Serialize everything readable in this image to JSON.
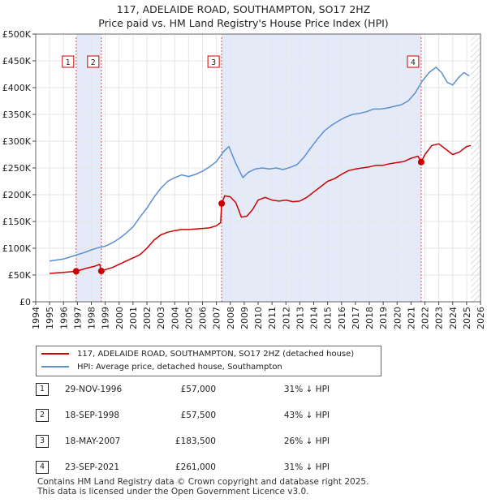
{
  "chart_data": {
    "type": "line",
    "title": "117, ADELAIDE ROAD, SOUTHAMPTON, SO17 2HZ",
    "subtitle": "Price paid vs. HM Land Registry's House Price Index (HPI)",
    "xlabel": "",
    "ylabel": "",
    "xlim": [
      1994,
      2026
    ],
    "ylim": [
      0,
      500000
    ],
    "x_ticks": [
      "1994",
      "1995",
      "1996",
      "1997",
      "1998",
      "1999",
      "2000",
      "2001",
      "2002",
      "2003",
      "2004",
      "2005",
      "2006",
      "2007",
      "2008",
      "2009",
      "2010",
      "2011",
      "2012",
      "2013",
      "2014",
      "2015",
      "2016",
      "2017",
      "2018",
      "2019",
      "2020",
      "2021",
      "2022",
      "2023",
      "2024",
      "2025",
      "2026"
    ],
    "y_ticks": [
      {
        "value": 0,
        "label": "£0"
      },
      {
        "value": 50000,
        "label": "£50K"
      },
      {
        "value": 100000,
        "label": "£100K"
      },
      {
        "value": 150000,
        "label": "£150K"
      },
      {
        "value": 200000,
        "label": "£200K"
      },
      {
        "value": 250000,
        "label": "£250K"
      },
      {
        "value": 300000,
        "label": "£300K"
      },
      {
        "value": 350000,
        "label": "£350K"
      },
      {
        "value": 400000,
        "label": "£400K"
      },
      {
        "value": 450000,
        "label": "£450K"
      },
      {
        "value": 500000,
        "label": "£500K"
      }
    ],
    "series": [
      {
        "name": "117, ADELAIDE ROAD, SOUTHAMPTON, SO17 2HZ (detached house)",
        "color": "#cc0000",
        "x": [
          1995.0,
          1995.5,
          1996.0,
          1996.5,
          1996.91,
          1997.3,
          1997.7,
          1998.2,
          1998.6,
          1998.72,
          1999.0,
          1999.5,
          2000.0,
          2000.5,
          2001.0,
          2001.5,
          2002.0,
          2002.5,
          2003.0,
          2003.5,
          2004.0,
          2004.5,
          2005.0,
          2005.5,
          2006.0,
          2006.5,
          2007.0,
          2007.3,
          2007.38,
          2007.6,
          2008.0,
          2008.4,
          2008.8,
          2009.2,
          2009.6,
          2010.0,
          2010.5,
          2011.0,
          2011.5,
          2012.0,
          2012.5,
          2013.0,
          2013.5,
          2014.0,
          2014.5,
          2015.0,
          2015.5,
          2016.0,
          2016.5,
          2017.0,
          2017.5,
          2018.0,
          2018.5,
          2019.0,
          2019.5,
          2020.0,
          2020.5,
          2021.0,
          2021.5,
          2021.73,
          2022.0,
          2022.5,
          2023.0,
          2023.5,
          2024.0,
          2024.5,
          2025.0,
          2025.3
        ],
        "values": [
          53000,
          54000,
          55000,
          56000,
          57000,
          60000,
          63000,
          66000,
          70000,
          57500,
          60000,
          64000,
          70000,
          76000,
          82000,
          88000,
          100000,
          115000,
          125000,
          130000,
          133000,
          135000,
          135000,
          136000,
          137000,
          138000,
          142000,
          148000,
          183500,
          198000,
          196000,
          185000,
          158000,
          160000,
          172000,
          190000,
          195000,
          190000,
          188000,
          190000,
          187000,
          188000,
          195000,
          205000,
          215000,
          225000,
          230000,
          238000,
          245000,
          248000,
          250000,
          252000,
          255000,
          255000,
          258000,
          260000,
          262000,
          268000,
          272000,
          261000,
          275000,
          292000,
          295000,
          285000,
          275000,
          280000,
          290000,
          292000
        ]
      },
      {
        "name": "HPI: Average price, detached house, Southampton",
        "color": "#5b8fd0",
        "x": [
          1995.0,
          1995.5,
          1996.0,
          1996.5,
          1997.0,
          1997.5,
          1998.0,
          1998.5,
          1999.0,
          1999.5,
          2000.0,
          2000.5,
          2001.0,
          2001.5,
          2002.0,
          2002.5,
          2003.0,
          2003.5,
          2004.0,
          2004.5,
          2005.0,
          2005.5,
          2006.0,
          2006.5,
          2007.0,
          2007.5,
          2007.9,
          2008.4,
          2008.9,
          2009.3,
          2009.8,
          2010.3,
          2010.8,
          2011.3,
          2011.8,
          2012.3,
          2012.8,
          2013.3,
          2013.8,
          2014.3,
          2014.8,
          2015.3,
          2015.8,
          2016.3,
          2016.8,
          2017.3,
          2017.8,
          2018.3,
          2018.8,
          2019.3,
          2019.8,
          2020.3,
          2020.8,
          2021.3,
          2021.8,
          2022.3,
          2022.8,
          2023.2,
          2023.6,
          2024.0,
          2024.4,
          2024.8,
          2025.2
        ],
        "values": [
          76000,
          78000,
          80000,
          84000,
          88000,
          92000,
          97000,
          101000,
          104000,
          110000,
          118000,
          128000,
          140000,
          158000,
          175000,
          195000,
          212000,
          225000,
          232000,
          237000,
          234000,
          238000,
          244000,
          252000,
          262000,
          280000,
          290000,
          258000,
          232000,
          242000,
          248000,
          250000,
          248000,
          250000,
          247000,
          251000,
          256000,
          270000,
          288000,
          305000,
          320000,
          330000,
          338000,
          345000,
          350000,
          352000,
          355000,
          360000,
          360000,
          362000,
          365000,
          368000,
          375000,
          390000,
          412000,
          428000,
          438000,
          428000,
          410000,
          405000,
          418000,
          428000,
          422000
        ]
      }
    ],
    "sale_markers": [
      {
        "label": "1",
        "x": 1996.91,
        "value": 57000
      },
      {
        "label": "2",
        "x": 1998.72,
        "value": 57500
      },
      {
        "label": "3",
        "x": 2007.38,
        "value": 183500
      },
      {
        "label": "4",
        "x": 2021.73,
        "value": 261000
      }
    ],
    "future_hatch_from": 2025.3,
    "legend_position": "below"
  },
  "sales": [
    {
      "num": "1",
      "date": "29-NOV-1996",
      "price": "£57,000",
      "hpi": "31% ↓ HPI"
    },
    {
      "num": "2",
      "date": "18-SEP-1998",
      "price": "£57,500",
      "hpi": "43% ↓ HPI"
    },
    {
      "num": "3",
      "date": "18-MAY-2007",
      "price": "£183,500",
      "hpi": "26% ↓ HPI"
    },
    {
      "num": "4",
      "date": "23-SEP-2021",
      "price": "£261,000",
      "hpi": "31% ↓ HPI"
    }
  ],
  "footer": {
    "line1": "Contains HM Land Registry data © Crown copyright and database right 2025.",
    "line2": "This data is licensed under the Open Government Licence v3.0."
  }
}
